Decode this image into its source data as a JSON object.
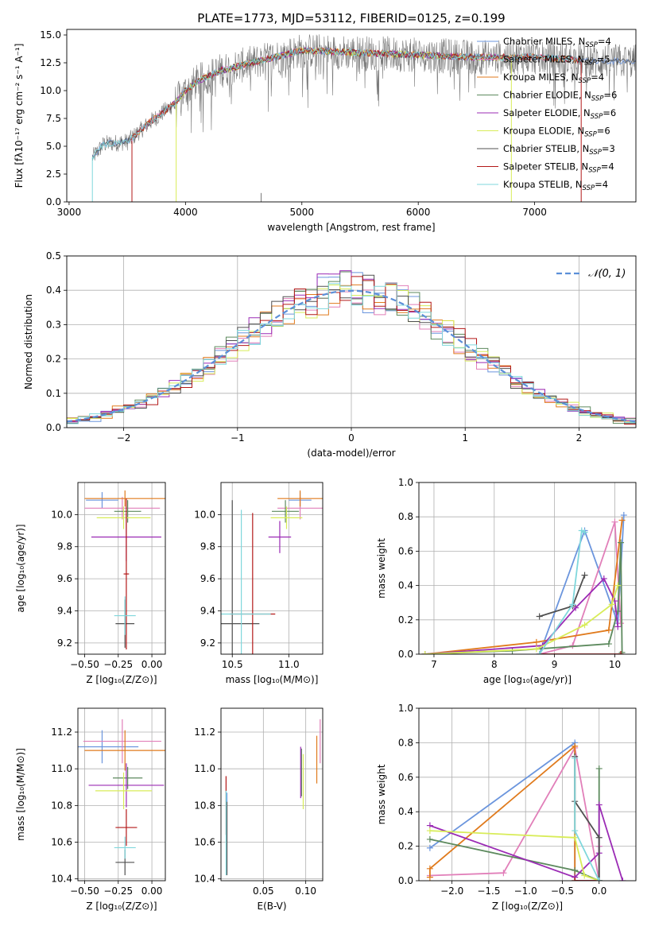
{
  "figure_title": "PLATE=1773, MJD=53112, FIBERID=0125, z=0.199",
  "colors": {
    "Chabrier MILES": "#6b95dd",
    "Salpeter MILES": "#e17fb9",
    "Kroupa MILES": "#e07a1c",
    "Chabrier ELODIE": "#5d8a5e",
    "Salpeter ELODIE": "#9b2bb5",
    "Kroupa ELODIE": "#d8ec58",
    "Chabrier STELIB": "#505050",
    "Salpeter STELIB": "#b31818",
    "Kroupa STELIB": "#7fd7dc",
    "normal": "#5b8fd8"
  },
  "chart_data": [
    {
      "id": "spectrum",
      "type": "line",
      "title": "PLATE=1773, MJD=53112, FIBERID=0125, z=0.199",
      "xlabel": "wavelength [Angstrom, rest frame]",
      "ylabel": "Flux [fλ10⁻¹⁷ erg cm⁻² s⁻¹ A⁻¹]",
      "xlim": [
        2980,
        7870
      ],
      "ylim": [
        0,
        15.5
      ],
      "xticks": [
        3000,
        4000,
        5000,
        6000,
        7000
      ],
      "yticks": [
        0.0,
        2.5,
        5.0,
        7.5,
        10.0,
        12.5,
        15.0
      ],
      "legend_position": "right",
      "legend": [
        {
          "label": "Chabrier MILES, N",
          "sub": "SSP",
          "suffix": "=4",
          "key": "Chabrier MILES"
        },
        {
          "label": "Salpeter MILES, N",
          "sub": "SSP",
          "suffix": "=5",
          "key": "Salpeter MILES"
        },
        {
          "label": "Kroupa MILES, N",
          "sub": "SSP",
          "suffix": "=4",
          "key": "Kroupa MILES"
        },
        {
          "label": "Chabrier ELODIE, N",
          "sub": "SSP",
          "suffix": "=6",
          "key": "Chabrier ELODIE"
        },
        {
          "label": "Salpeter ELODIE, N",
          "sub": "SSP",
          "suffix": "=6",
          "key": "Salpeter ELODIE"
        },
        {
          "label": "Kroupa ELODIE, N",
          "sub": "SSP",
          "suffix": "=6",
          "key": "Kroupa ELODIE"
        },
        {
          "label": "Chabrier STELIB, N",
          "sub": "SSP",
          "suffix": "=3",
          "key": "Chabrier STELIB"
        },
        {
          "label": "Salpeter STELIB, N",
          "sub": "SSP",
          "suffix": "=4",
          "key": "Salpeter STELIB"
        },
        {
          "label": "Kroupa STELIB, N",
          "sub": "SSP",
          "suffix": "=4",
          "key": "Kroupa STELIB"
        }
      ],
      "continuum": {
        "x": [
          3200,
          3300,
          3500,
          3700,
          3900,
          4000,
          4100,
          4300,
          4500,
          4800,
          5000,
          5500,
          6000,
          6500,
          7000,
          7500,
          7870
        ],
        "y": [
          4.0,
          5.2,
          5.4,
          7.2,
          8.8,
          10.0,
          10.8,
          11.8,
          12.3,
          13.1,
          13.6,
          13.4,
          13.2,
          13.0,
          13.0,
          12.7,
          12.6
        ]
      },
      "model_ranges": [
        [
          3200,
          7870
        ],
        [
          3530,
          7400
        ],
        [
          3530,
          7400
        ],
        [
          3900,
          6800
        ],
        [
          3900,
          6800
        ],
        [
          3900,
          6800
        ],
        [
          3200,
          7870
        ],
        [
          3530,
          7400
        ],
        [
          3200,
          7400
        ]
      ]
    },
    {
      "id": "residuals",
      "type": "line",
      "xlabel": "(data-model)/error",
      "ylabel": "Normed distribution",
      "xlim": [
        -2.5,
        2.5
      ],
      "ylim": [
        0,
        0.5
      ],
      "xticks": [
        -2,
        -1,
        0,
        1,
        2
      ],
      "yticks": [
        0.0,
        0.1,
        0.2,
        0.3,
        0.4,
        0.5
      ],
      "legend_position": "top-right",
      "legend_label": "𝒩(0, 1)",
      "bin_width": 0.1,
      "bin_start": -2.5,
      "curve_mu": 0,
      "curve_sigma": 1
    },
    {
      "id": "age-vs-Z",
      "type": "scatter",
      "xlabel": "Z [log₁₀(Z/Z⊙)]",
      "ylabel": "age  [log₁₀(age/yr)]",
      "xlim": [
        -0.55,
        0.1
      ],
      "ylim": [
        9.13,
        10.2
      ],
      "xticks": [
        -0.5,
        -0.25,
        0.0
      ],
      "xtick_labels": [
        "−0.50",
        "−0.25",
        "0.00"
      ],
      "yticks": [
        9.2,
        9.4,
        9.6,
        9.8,
        10.0
      ],
      "points": [
        {
          "key": "Chabrier MILES",
          "x": -0.37,
          "xerr": 0.12,
          "y": 10.09,
          "yerr": 0.05
        },
        {
          "key": "Salpeter MILES",
          "x": -0.22,
          "xerr": 0.28,
          "y": 10.04,
          "yerr": 0.07
        },
        {
          "key": "Kroupa MILES",
          "x": -0.2,
          "xerr": 0.3,
          "y": 10.1,
          "yerr": 0.05
        },
        {
          "key": "Chabrier ELODIE",
          "x": -0.18,
          "xerr": 0.1,
          "y": 10.02,
          "yerr": 0.07
        },
        {
          "key": "Salpeter ELODIE",
          "x": -0.19,
          "xerr": 0.26,
          "y": 9.86,
          "yerr": 0.15
        },
        {
          "key": "Kroupa ELODIE",
          "x": -0.21,
          "xerr": 0.2,
          "y": 9.98,
          "yerr": 0.07
        },
        {
          "key": "Chabrier STELIB",
          "x": -0.2,
          "xerr": 0.07,
          "y": 9.32,
          "yerr": 0.15
        },
        {
          "key": "Salpeter STELIB",
          "x": -0.19,
          "xerr": 0.02,
          "y": 9.63,
          "yerr": 0.47
        },
        {
          "key": "Kroupa STELIB",
          "x": -0.2,
          "xerr": 0.08,
          "y": 9.37,
          "yerr": 0.12
        }
      ]
    },
    {
      "id": "age-vs-mass",
      "type": "scatter",
      "xlabel": "mass [log₁₀(M/M⊙)]",
      "xlim": [
        10.4,
        11.3
      ],
      "ylim": [
        9.13,
        10.2
      ],
      "xticks": [
        10.5,
        11.0
      ],
      "xtick_labels": [
        "10.5",
        "11.0"
      ],
      "yticks": [
        9.2,
        9.4,
        9.6,
        9.8,
        10.0
      ],
      "points": [
        {
          "key": "Chabrier MILES",
          "x": 11.1,
          "xerr": 0.1,
          "y": 10.09,
          "yerr": 0.05
        },
        {
          "key": "Salpeter MILES",
          "x": 11.1,
          "xerr": 0.2,
          "y": 10.04,
          "yerr": 0.07
        },
        {
          "key": "Kroupa MILES",
          "x": 11.1,
          "xerr": 0.2,
          "y": 10.1,
          "yerr": 0.05
        },
        {
          "key": "Chabrier ELODIE",
          "x": 10.97,
          "xerr": 0.12,
          "y": 10.02,
          "yerr": 0.07
        },
        {
          "key": "Salpeter ELODIE",
          "x": 10.92,
          "xerr": 0.1,
          "y": 9.86,
          "yerr": 0.1
        },
        {
          "key": "Kroupa ELODIE",
          "x": 10.98,
          "xerr": 0.14,
          "y": 9.98,
          "yerr": 0.07
        },
        {
          "key": "Chabrier STELIB",
          "x": 10.5,
          "xerr": 0.24,
          "y": 9.32,
          "yerr": 0.77
        },
        {
          "key": "Salpeter STELIB",
          "x": 10.68,
          "xerr": 0.2,
          "y": 9.38,
          "yerr": 0.63
        },
        {
          "key": "Kroupa STELIB",
          "x": 10.58,
          "xerr": 0.26,
          "y": 9.38,
          "yerr": 0.65
        }
      ]
    },
    {
      "id": "weight-vs-age",
      "type": "line",
      "xlabel": "age  [log₁₀(age/yr)]",
      "ylabel": "mass weight",
      "xlim": [
        6.75,
        10.35
      ],
      "ylim": [
        0,
        1.0
      ],
      "xticks": [
        7,
        8,
        9,
        10
      ],
      "xtick_labels": [
        "7",
        "8",
        "9",
        "10"
      ],
      "yticks": [
        0.0,
        0.2,
        0.4,
        0.6,
        0.8,
        1.0
      ],
      "series": [
        {
          "key": "Chabrier MILES",
          "x": [
            8.75,
            9.5,
            10.05,
            10.15
          ],
          "y": [
            0.0,
            0.72,
            0.18,
            0.81
          ]
        },
        {
          "key": "Salpeter MILES",
          "x": [
            8.75,
            9.3,
            10.0,
            10.1
          ],
          "y": [
            0.0,
            0.05,
            0.77,
            0.18
          ]
        },
        {
          "key": "Kroupa MILES",
          "x": [
            6.85,
            8.7,
            9.9,
            10.12
          ],
          "y": [
            0.0,
            0.07,
            0.14,
            0.78
          ]
        },
        {
          "key": "Chabrier ELODIE",
          "x": [
            6.85,
            8.3,
            9.9,
            10.05,
            10.1,
            10.12
          ],
          "y": [
            0.0,
            0.02,
            0.06,
            0.25,
            0.65,
            0.01
          ]
        },
        {
          "key": "Salpeter ELODIE",
          "x": [
            6.85,
            8.8,
            9.35,
            9.82,
            10.0,
            10.05
          ],
          "y": [
            0.0,
            0.05,
            0.27,
            0.44,
            0.31,
            0.16
          ]
        },
        {
          "key": "Kroupa ELODIE",
          "x": [
            6.85,
            8.7,
            9.5,
            9.95,
            10.05
          ],
          "y": [
            0.0,
            0.03,
            0.17,
            0.29,
            0.4
          ]
        },
        {
          "key": "Chabrier STELIB",
          "x": [
            8.75,
            9.3,
            9.5
          ],
          "y": [
            0.22,
            0.28,
            0.46
          ]
        },
        {
          "key": "Salpeter STELIB",
          "x": [
            8.75,
            10.1
          ],
          "y": [
            0.0,
            0.0
          ]
        },
        {
          "key": "Kroupa STELIB",
          "x": [
            8.75,
            9.3,
            9.45,
            9.5
          ],
          "y": [
            0.0,
            0.29,
            0.72,
            0.71
          ]
        }
      ]
    },
    {
      "id": "mass-vs-Z",
      "type": "scatter",
      "xlabel": "Z [log₁₀(Z/Z⊙)]",
      "ylabel": "mass [log₁₀(M/M⊙)]",
      "xlim": [
        -0.55,
        0.1
      ],
      "ylim": [
        10.39,
        11.33
      ],
      "xticks": [
        -0.5,
        -0.25,
        0.0
      ],
      "xtick_labels": [
        "−0.50",
        "−0.25",
        "0.00"
      ],
      "yticks": [
        10.4,
        10.6,
        10.8,
        11.0,
        11.2
      ],
      "points": [
        {
          "key": "Chabrier MILES",
          "x": -0.37,
          "xerr": 0.27,
          "y": 11.12,
          "yerr": 0.09
        },
        {
          "key": "Salpeter MILES",
          "x": -0.22,
          "xerr": 0.29,
          "y": 11.15,
          "yerr": 0.12
        },
        {
          "key": "Kroupa MILES",
          "x": -0.2,
          "xerr": 0.3,
          "y": 11.1,
          "yerr": 0.11
        },
        {
          "key": "Chabrier ELODIE",
          "x": -0.18,
          "xerr": 0.11,
          "y": 10.95,
          "yerr": 0.06
        },
        {
          "key": "Salpeter ELODIE",
          "x": -0.19,
          "xerr": 0.28,
          "y": 10.91,
          "yerr": 0.12
        },
        {
          "key": "Kroupa ELODIE",
          "x": -0.21,
          "xerr": 0.21,
          "y": 10.88,
          "yerr": 0.1
        },
        {
          "key": "Chabrier STELIB",
          "x": -0.2,
          "xerr": 0.07,
          "y": 10.49,
          "yerr": 0.07
        },
        {
          "key": "Salpeter STELIB",
          "x": -0.19,
          "xerr": 0.08,
          "y": 10.68,
          "yerr": 0.1
        },
        {
          "key": "Kroupa STELIB",
          "x": -0.2,
          "xerr": 0.08,
          "y": 10.57,
          "yerr": 0.06
        }
      ]
    },
    {
      "id": "mass-vs-ebv",
      "type": "scatter",
      "xlabel": "E(B-V)",
      "xlim": [
        0.0,
        0.12
      ],
      "ylim": [
        10.39,
        11.33
      ],
      "xticks": [
        0.05,
        0.1
      ],
      "xtick_labels": [
        "0.05",
        "0.10"
      ],
      "yticks": [
        10.4,
        10.6,
        10.8,
        11.0,
        11.2
      ],
      "points": [
        {
          "key": "Chabrier MILES",
          "x": 0.007,
          "xerr": 0,
          "y": 10.65,
          "yerr": 0.22
        },
        {
          "key": "Salpeter MILES",
          "x": 0.117,
          "xerr": 0,
          "y": 11.15,
          "yerr": 0.12
        },
        {
          "key": "Kroupa MILES",
          "x": 0.113,
          "xerr": 0,
          "y": 11.05,
          "yerr": 0.13
        },
        {
          "key": "Chabrier ELODIE",
          "x": 0.095,
          "xerr": 0,
          "y": 10.98,
          "yerr": 0.13
        },
        {
          "key": "Salpeter ELODIE",
          "x": 0.094,
          "xerr": 0,
          "y": 10.98,
          "yerr": 0.14
        },
        {
          "key": "Kroupa ELODIE",
          "x": 0.097,
          "xerr": 0,
          "y": 10.93,
          "yerr": 0.15
        },
        {
          "key": "Chabrier STELIB",
          "x": 0.007,
          "xerr": 0,
          "y": 10.62,
          "yerr": 0.2
        },
        {
          "key": "Salpeter STELIB",
          "x": 0.006,
          "xerr": 0,
          "y": 10.8,
          "yerr": 0.16
        },
        {
          "key": "Kroupa STELIB",
          "x": 0.006,
          "xerr": 0,
          "y": 10.65,
          "yerr": 0.23
        }
      ]
    },
    {
      "id": "weight-vs-Z",
      "type": "line",
      "xlabel": "Z [log₁₀(Z/Z⊙)]",
      "ylabel": "mass weight",
      "xlim": [
        -2.45,
        0.5
      ],
      "ylim": [
        0,
        1.0
      ],
      "xticks": [
        -2.0,
        -1.5,
        -1.0,
        -0.5,
        0.0
      ],
      "xtick_labels": [
        "−2.0",
        "−1.5",
        "−1.0",
        "−0.5",
        "0.0"
      ],
      "yticks": [
        0.0,
        0.2,
        0.4,
        0.6,
        0.8,
        1.0
      ],
      "series": [
        {
          "key": "Chabrier MILES",
          "x": [
            -2.3,
            -0.33,
            -0.33,
            0.0,
            0.0
          ],
          "y": [
            0.19,
            0.8,
            0.0,
            0.0,
            0.2
          ]
        },
        {
          "key": "Salpeter MILES",
          "x": [
            -2.3,
            -1.3,
            -0.33,
            0.0,
            0.0
          ],
          "y": [
            0.03,
            0.045,
            0.77,
            0.0,
            0.2
          ]
        },
        {
          "key": "Kroupa MILES",
          "x": [
            -2.3,
            -2.3,
            -0.33,
            -0.33
          ],
          "y": [
            0.02,
            0.07,
            0.78,
            0.0
          ]
        },
        {
          "key": "Chabrier ELODIE",
          "x": [
            -2.3,
            -0.33,
            0.0,
            0.0
          ],
          "y": [
            0.24,
            0.06,
            0.0,
            0.65
          ]
        },
        {
          "key": "Salpeter ELODIE",
          "x": [
            -2.3,
            -0.33,
            0.0,
            0.0,
            0.32
          ],
          "y": [
            0.32,
            0.02,
            0.16,
            0.44,
            0.0
          ]
        },
        {
          "key": "Kroupa ELODIE",
          "x": [
            -2.3,
            -0.33,
            -0.2,
            0.0
          ],
          "y": [
            0.29,
            0.25,
            0.03,
            0.0
          ]
        },
        {
          "key": "Chabrier STELIB",
          "x": [
            -0.33,
            -0.33,
            0.0,
            0.0
          ],
          "y": [
            0.72,
            0.46,
            0.25,
            0.0
          ]
        },
        {
          "key": "Salpeter STELIB",
          "x": [
            -0.33,
            0.0
          ],
          "y": [
            0.0,
            0.0
          ]
        },
        {
          "key": "Kroupa STELIB",
          "x": [
            -0.33,
            -0.33,
            0.0,
            0.0
          ],
          "y": [
            0.71,
            0.29,
            0.0,
            0.0
          ]
        }
      ]
    }
  ]
}
